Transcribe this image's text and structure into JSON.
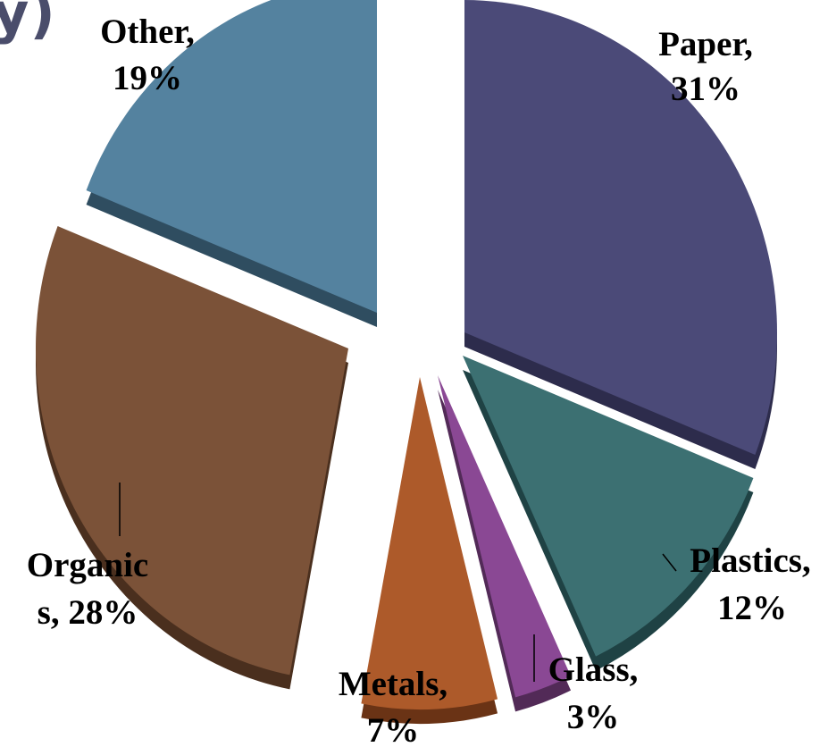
{
  "title_fragment": "y)",
  "chart_data": {
    "type": "pie",
    "style": "exploded 3D pie",
    "slices": [
      {
        "name": "Paper",
        "value": 31,
        "label_line1": "Paper,",
        "label_line2": "31%",
        "color": "#4b4a78",
        "side": "#2d2c4c"
      },
      {
        "name": "Plastics",
        "value": 12,
        "label_line1": "Plastics,",
        "label_line2": "12%",
        "color": "#3c7072",
        "side": "#1f4244"
      },
      {
        "name": "Glass",
        "value": 3,
        "label_line1": "Glass,",
        "label_line2": "3%",
        "color": "#8a4894",
        "side": "#522a57"
      },
      {
        "name": "Metals",
        "value": 7,
        "label_line1": "Metals,",
        "label_line2": "7%",
        "color": "#ad5a2a",
        "side": "#6a3315"
      },
      {
        "name": "Organics",
        "value": 28,
        "label_line1": "Organic",
        "label_line2": "s, 28%",
        "color": "#7b5238",
        "side": "#4a2f1e"
      },
      {
        "name": "Other",
        "value": 19,
        "label_line1": "Other,",
        "label_line2": "19%",
        "color": "#54829f",
        "side": "#2f4d60"
      }
    ]
  }
}
